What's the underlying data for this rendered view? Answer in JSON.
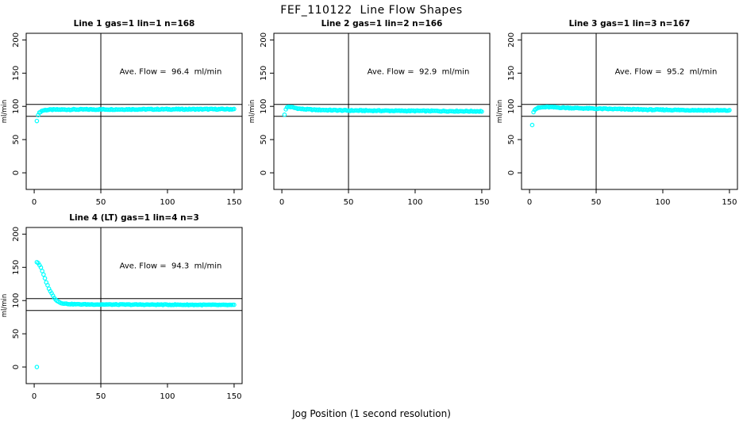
{
  "page": {
    "title": "FEF_110122  Line Flow Shapes",
    "xlabel": "Jog Position (1 second resolution)",
    "background": "#ffffff",
    "axis_color": "#000000"
  },
  "chart_data": [
    {
      "type": "scatter",
      "title": "Line 1 gas=1 lin=1 n=168",
      "annotation": "Ave. Flow =  96.4  ml/min",
      "ave_flow_ml_min": 96.4,
      "n_label": 168,
      "ylabel": "ml/min",
      "xticks": [
        0,
        50,
        100,
        150
      ],
      "yticks": [
        0,
        50,
        100,
        150,
        200
      ],
      "xrange": [
        -6,
        156
      ],
      "yrange": [
        -25,
        210
      ],
      "hlines": [
        103,
        85
      ],
      "vline": 50,
      "grid": false,
      "point_color": "#00FFFF",
      "n_points": 167,
      "jitter": 0.7,
      "outliers": [
        [
          2,
          78
        ]
      ],
      "curve_anchors": [
        [
          3,
          87.5
        ],
        [
          4,
          90.5
        ],
        [
          5,
          92.5
        ],
        [
          6,
          93.5
        ],
        [
          8,
          94.5
        ],
        [
          12,
          95.0
        ],
        [
          30,
          95.3
        ],
        [
          80,
          95.6
        ],
        [
          150,
          95.8
        ]
      ]
    },
    {
      "type": "scatter",
      "title": "Line 2 gas=1 lin=2 n=166",
      "annotation": "Ave. Flow =  92.9  ml/min",
      "ave_flow_ml_min": 92.9,
      "n_label": 166,
      "ylabel": "ml/min",
      "xticks": [
        0,
        50,
        100,
        150
      ],
      "yticks": [
        0,
        50,
        100,
        150,
        200
      ],
      "xrange": [
        -6,
        156
      ],
      "yrange": [
        -25,
        210
      ],
      "hlines": [
        103,
        85
      ],
      "vline": 50,
      "grid": false,
      "point_color": "#00FFFF",
      "n_points": 165,
      "jitter": 0.7,
      "outliers": [
        [
          2,
          87.5
        ]
      ],
      "curve_anchors": [
        [
          3,
          96.0
        ],
        [
          4,
          98.5
        ],
        [
          5,
          99.5
        ],
        [
          7,
          99.0
        ],
        [
          10,
          97.5
        ],
        [
          15,
          96.0
        ],
        [
          25,
          94.8
        ],
        [
          50,
          93.8
        ],
        [
          100,
          93.2
        ],
        [
          150,
          92.6
        ]
      ]
    },
    {
      "type": "scatter",
      "title": "Line 3 gas=1 lin=3 n=167",
      "annotation": "Ave. Flow =  95.2  ml/min",
      "ave_flow_ml_min": 95.2,
      "n_label": 167,
      "ylabel": "ml/min",
      "xticks": [
        0,
        50,
        100,
        150
      ],
      "yticks": [
        0,
        50,
        100,
        150,
        200
      ],
      "xrange": [
        -6,
        156
      ],
      "yrange": [
        -25,
        210
      ],
      "hlines": [
        103,
        85
      ],
      "vline": 50,
      "grid": false,
      "point_color": "#00FFFF",
      "n_points": 166,
      "jitter": 0.7,
      "outliers": [
        [
          2,
          72
        ]
      ],
      "curve_anchors": [
        [
          3,
          92.0
        ],
        [
          4,
          95.5
        ],
        [
          6,
          97.5
        ],
        [
          9,
          98.5
        ],
        [
          14,
          99.0
        ],
        [
          25,
          98.0
        ],
        [
          50,
          96.5
        ],
        [
          90,
          95.0
        ],
        [
          150,
          93.8
        ]
      ]
    },
    {
      "type": "scatter",
      "title": "Line 4 (LT) gas=1 lin=4 n=3",
      "annotation": "Ave. Flow =  94.3  ml/min",
      "ave_flow_ml_min": 94.3,
      "n_label": 3,
      "ylabel": "ml/min",
      "xticks": [
        0,
        50,
        100,
        150
      ],
      "yticks": [
        0,
        50,
        100,
        150,
        200
      ],
      "xrange": [
        -6,
        156
      ],
      "yrange": [
        -25,
        210
      ],
      "hlines": [
        103,
        85
      ],
      "vline": 50,
      "grid": false,
      "point_color": "#00FFFF",
      "n_points": 148,
      "jitter": 0.5,
      "outliers": [
        [
          2,
          0
        ]
      ],
      "curve_anchors": [
        [
          2,
          158
        ],
        [
          3,
          156.5
        ],
        [
          4,
          153.5
        ],
        [
          5,
          149.5
        ],
        [
          6,
          144.5
        ],
        [
          7,
          139
        ],
        [
          8,
          133.5
        ],
        [
          9,
          128
        ],
        [
          10,
          123
        ],
        [
          11,
          118.5
        ],
        [
          12,
          114.5
        ],
        [
          13,
          111
        ],
        [
          14,
          107.5
        ],
        [
          15,
          104.5
        ],
        [
          16,
          102
        ],
        [
          17,
          100
        ],
        [
          18,
          98.5
        ],
        [
          20,
          96.5
        ],
        [
          23,
          95.3
        ],
        [
          27,
          94.7
        ],
        [
          35,
          94.3
        ],
        [
          60,
          94.0
        ],
        [
          100,
          93.8
        ],
        [
          150,
          93.3
        ]
      ]
    }
  ]
}
